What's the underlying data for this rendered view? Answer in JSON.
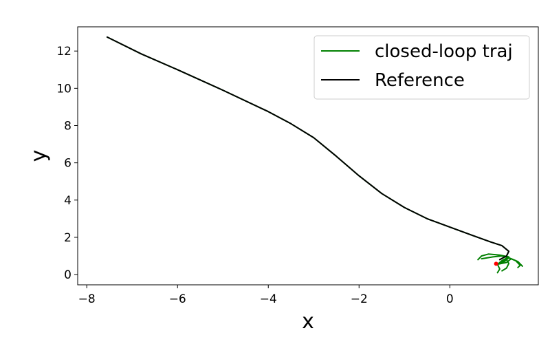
{
  "chart_data": {
    "type": "line",
    "xlabel": "x",
    "ylabel": "y",
    "xlim": [
      -8.2,
      1.95
    ],
    "ylim": [
      -0.55,
      13.3
    ],
    "x_ticks": [
      -8,
      -6,
      -4,
      -2,
      0
    ],
    "y_ticks": [
      0,
      2,
      4,
      6,
      8,
      10,
      12
    ],
    "x_tick_labels": [
      "−8",
      "−6",
      "−4",
      "−2",
      "0"
    ],
    "y_tick_labels": [
      "0",
      "2",
      "4",
      "6",
      "8",
      "10",
      "12"
    ],
    "legend": {
      "position": "top-right",
      "entries": [
        "closed-loop traj",
        "Reference"
      ]
    },
    "grid": false,
    "series": [
      {
        "name": "Reference",
        "color": "#000000",
        "points": [
          [
            -7.55,
            12.75
          ],
          [
            -6.8,
            11.85
          ],
          [
            -6.0,
            11.0
          ],
          [
            -5.0,
            9.9
          ],
          [
            -4.0,
            8.75
          ],
          [
            -3.5,
            8.1
          ],
          [
            -3.0,
            7.35
          ],
          [
            -2.5,
            6.35
          ],
          [
            -2.0,
            5.3
          ],
          [
            -1.5,
            4.35
          ],
          [
            -1.0,
            3.6
          ],
          [
            -0.5,
            3.0
          ],
          [
            0.0,
            2.55
          ],
          [
            0.5,
            2.1
          ],
          [
            0.9,
            1.75
          ],
          [
            1.15,
            1.55
          ],
          [
            1.3,
            1.25
          ],
          [
            1.25,
            1.0
          ],
          [
            1.1,
            0.8
          ]
        ]
      },
      {
        "name": "closed-loop traj",
        "color": "#008000",
        "paths": [
          [
            [
              -7.55,
              12.75
            ],
            [
              -6.8,
              11.85
            ],
            [
              -6.0,
              11.0
            ],
            [
              -5.0,
              9.9
            ],
            [
              -4.0,
              8.75
            ],
            [
              -3.5,
              8.1
            ],
            [
              -3.0,
              7.35
            ],
            [
              -2.5,
              6.35
            ],
            [
              -2.0,
              5.3
            ],
            [
              -1.5,
              4.35
            ],
            [
              -1.0,
              3.6
            ],
            [
              -0.5,
              3.0
            ],
            [
              0.0,
              2.55
            ],
            [
              0.5,
              2.1
            ],
            [
              0.9,
              1.75
            ],
            [
              1.15,
              1.55
            ],
            [
              1.3,
              1.25
            ],
            [
              1.25,
              1.0
            ],
            [
              1.1,
              0.8
            ]
          ],
          [
            [
              1.05,
              0.55
            ],
            [
              1.15,
              0.75
            ],
            [
              1.3,
              0.95
            ],
            [
              1.1,
              1.05
            ],
            [
              0.85,
              1.1
            ],
            [
              0.7,
              1.0
            ],
            [
              0.62,
              0.8
            ]
          ],
          [
            [
              1.05,
              0.55
            ],
            [
              1.2,
              0.7
            ],
            [
              1.3,
              0.9
            ],
            [
              1.45,
              0.75
            ],
            [
              1.55,
              0.5
            ],
            [
              1.5,
              0.38
            ]
          ],
          [
            [
              1.05,
              0.55
            ],
            [
              1.25,
              0.65
            ],
            [
              1.35,
              0.85
            ],
            [
              1.5,
              0.7
            ],
            [
              1.6,
              0.45
            ]
          ],
          [
            [
              1.05,
              0.55
            ],
            [
              1.1,
              0.3
            ],
            [
              1.05,
              0.1
            ]
          ],
          [
            [
              1.05,
              0.55
            ],
            [
              1.2,
              0.75
            ],
            [
              1.3,
              0.9
            ],
            [
              1.15,
              1.0
            ],
            [
              0.95,
              0.95
            ],
            [
              0.7,
              0.85
            ]
          ],
          [
            [
              1.05,
              0.55
            ],
            [
              1.25,
              0.8
            ],
            [
              1.3,
              0.6
            ],
            [
              1.25,
              0.35
            ],
            [
              1.15,
              0.2
            ]
          ]
        ]
      }
    ],
    "start_point": {
      "x": 1.02,
      "y": 0.58,
      "color": "#ff0000"
    }
  }
}
